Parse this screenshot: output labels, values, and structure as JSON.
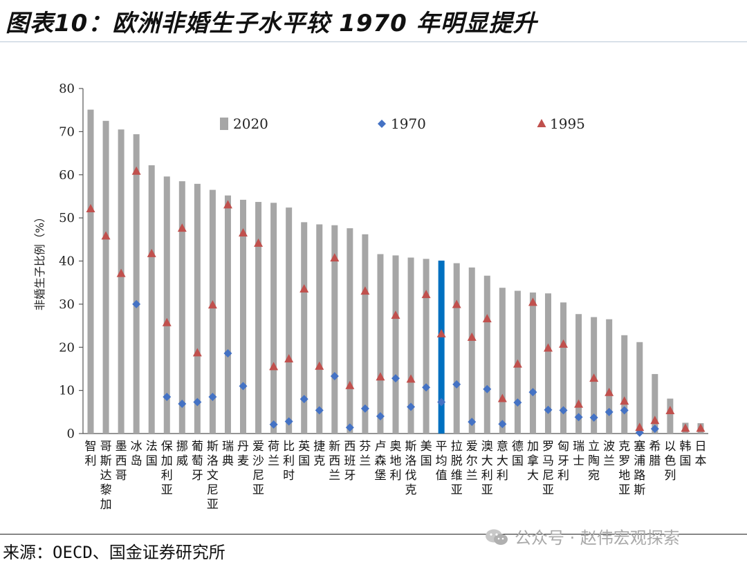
{
  "page_title": "图表10：欧洲非婚生子水平较 1970 年明显提升",
  "source": "来源：OECD、国金证券研究所",
  "watermark": "公众号 · 赵伟宏观探索",
  "chart_data": {
    "type": "bar",
    "title": "",
    "ylabel": "非婚生子比例（%）",
    "xlabel": "",
    "ylim": [
      0,
      80
    ],
    "yticks": [
      0,
      10,
      20,
      30,
      40,
      50,
      60,
      70,
      80
    ],
    "legend_position": "top",
    "categories": [
      "智利",
      "哥斯达黎加",
      "墨西哥",
      "冰岛",
      "法国",
      "保加利亚",
      "挪威",
      "葡萄牙",
      "斯洛文尼亚",
      "瑞典",
      "丹麦",
      "爱沙尼亚",
      "荷兰",
      "比利时",
      "英国",
      "捷克",
      "新西兰",
      "西班牙",
      "芬兰",
      "卢森堡",
      "奥地利",
      "斯洛伐克",
      "美国",
      "平均值",
      "拉脱维亚",
      "爱尔兰",
      "澳大利亚",
      "意大利",
      "德国",
      "加拿大",
      "罗马尼亚",
      "匈牙利",
      "瑞士",
      "立陶宛",
      "波兰",
      "克罗地亚",
      "塞浦路斯",
      "希腊",
      "以色列",
      "韩国",
      "日本"
    ],
    "highlight_category": "平均值",
    "series": [
      {
        "name": "2020",
        "kind": "bar",
        "color": "#a6a6a6",
        "highlight_color": "#0070c0",
        "values": [
          75.1,
          72.5,
          70.5,
          69.4,
          62.2,
          59.6,
          58.5,
          57.9,
          56.5,
          55.2,
          54.2,
          53.7,
          53.5,
          52.4,
          49.0,
          48.5,
          48.3,
          47.6,
          46.2,
          41.6,
          41.3,
          40.8,
          40.5,
          40.1,
          39.5,
          38.5,
          36.6,
          33.8,
          33.1,
          32.7,
          32.5,
          30.4,
          27.7,
          27.0,
          26.5,
          22.8,
          21.2,
          13.8,
          8.1,
          2.5,
          2.4
        ]
      },
      {
        "name": "1970",
        "kind": "marker",
        "marker": "diamond",
        "color": "#4472c4",
        "values": [
          null,
          null,
          null,
          30.0,
          null,
          8.5,
          6.9,
          7.3,
          8.5,
          18.6,
          11.0,
          null,
          2.1,
          2.8,
          8.0,
          5.4,
          13.3,
          1.4,
          5.8,
          4.0,
          12.8,
          6.2,
          10.7,
          7.3,
          11.4,
          2.7,
          10.3,
          2.2,
          7.2,
          9.6,
          5.5,
          5.4,
          3.8,
          3.7,
          5.0,
          5.4,
          0.2,
          1.1,
          null,
          null,
          null
        ]
      },
      {
        "name": "1995",
        "kind": "marker",
        "marker": "triangle",
        "color": "#c0504d",
        "values": [
          52.1,
          45.8,
          37.1,
          60.8,
          41.7,
          25.7,
          47.6,
          18.7,
          29.8,
          53.0,
          46.5,
          44.1,
          15.5,
          17.3,
          33.5,
          15.6,
          40.7,
          11.1,
          33.0,
          13.1,
          27.4,
          12.6,
          32.2,
          23.1,
          29.9,
          22.3,
          26.6,
          8.1,
          16.1,
          30.4,
          19.8,
          20.7,
          6.8,
          12.8,
          9.5,
          7.5,
          1.4,
          3.0,
          5.3,
          1.2,
          1.2
        ]
      }
    ]
  }
}
